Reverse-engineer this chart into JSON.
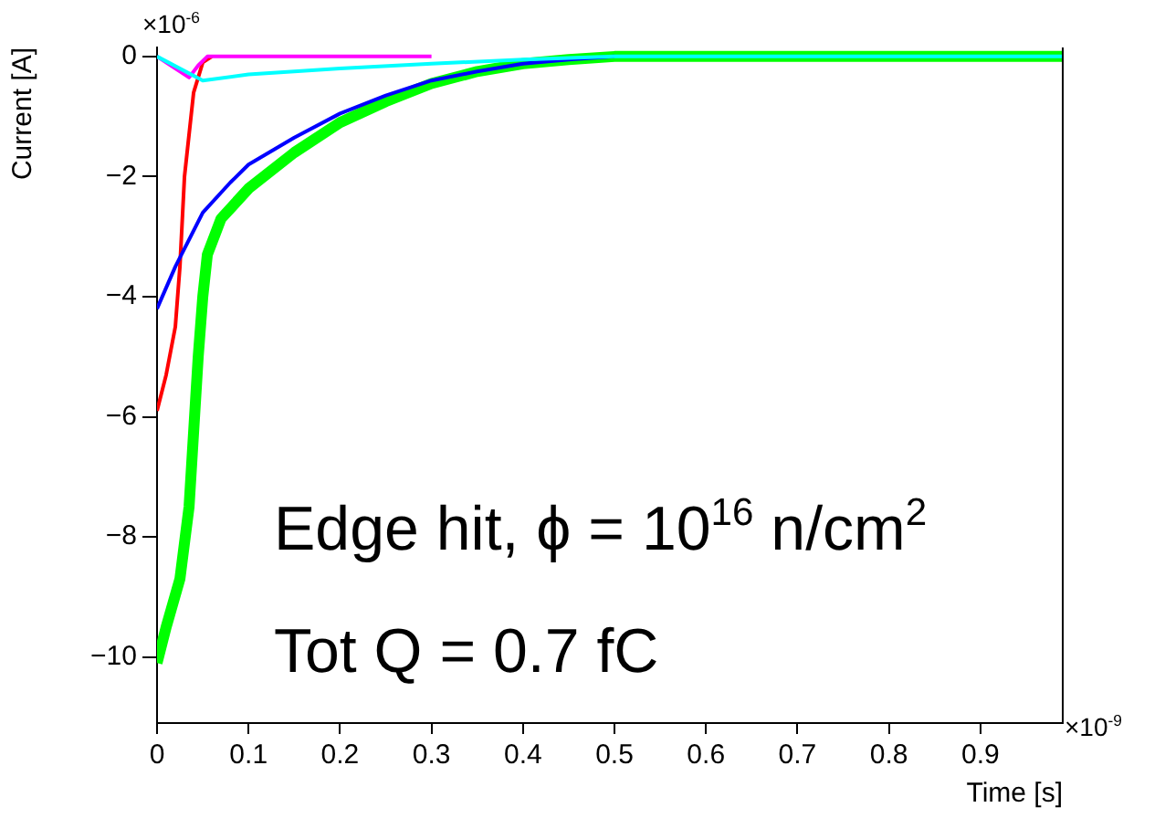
{
  "chart_data": {
    "type": "line",
    "xlabel": "Time [s]",
    "ylabel": "Current [A]",
    "xlim": [
      0,
      0.99
    ],
    "xticks": [
      0,
      0.1,
      0.2,
      0.3,
      0.4,
      0.5,
      0.6,
      0.7,
      0.8,
      0.9
    ],
    "ylim": [
      -11.1,
      0.15
    ],
    "yticks": [
      -10,
      -8,
      -6,
      -4,
      -2,
      0
    ],
    "grid": false,
    "legend": false,
    "marker": "none",
    "line_style": "solid",
    "annotations": [
      "Edge hit, ϕ = 10$^{16}$ n/cm$^{2}$",
      "Tot Q = 0.7 fC",
      "×10$^{-6}$",
      "×10$^{-9}$"
    ],
    "series": [
      {
        "color": "#ff0000",
        "x": [
          0,
          0.01,
          0.02,
          0.025,
          0.03,
          0.04,
          0.05,
          0.06
        ],
        "values": [
          -5.9,
          -5.3,
          -4.5,
          -3.5,
          -2,
          -0.6,
          -0.1,
          0
        ]
      },
      {
        "color": "#ff00ff",
        "x": [
          0,
          0.035,
          0.045,
          0.055,
          0.3
        ],
        "values": [
          0,
          -0.35,
          -0.15,
          0,
          0
        ]
      },
      {
        "color": "#00ff00",
        "x": [
          0,
          0.01,
          0.025,
          0.035,
          0.045,
          0.05,
          0.055,
          0.07,
          0.1,
          0.15,
          0.2,
          0.25,
          0.3,
          0.35,
          0.4,
          0.45,
          0.5,
          0.99
        ],
        "values": [
          -10.1,
          -9.5,
          -8.7,
          -7.5,
          -5,
          -4,
          -3.3,
          -2.7,
          -2.2,
          -1.6,
          -1.1,
          -0.75,
          -0.45,
          -0.25,
          -0.12,
          -0.05,
          0,
          0
        ]
      },
      {
        "color": "#0000ff",
        "x": [
          0,
          0.02,
          0.05,
          0.08,
          0.1,
          0.15,
          0.2,
          0.25,
          0.3,
          0.35,
          0.4,
          0.45,
          0.5
        ],
        "values": [
          -4.2,
          -3.5,
          -2.6,
          -2.1,
          -1.8,
          -1.35,
          -0.95,
          -0.65,
          -0.4,
          -0.25,
          -0.12,
          -0.05,
          0
        ]
      },
      {
        "color": "#00ffff",
        "x": [
          0,
          0.05,
          0.1,
          0.2,
          0.3,
          0.4,
          0.5,
          0.99
        ],
        "values": [
          0,
          -0.4,
          -0.3,
          -0.2,
          -0.12,
          -0.05,
          0,
          0
        ]
      }
    ]
  }
}
